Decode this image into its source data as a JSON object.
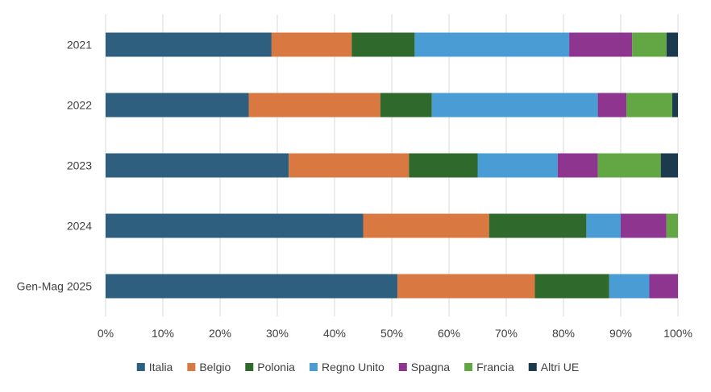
{
  "chart_data": {
    "type": "bar",
    "orientation": "horizontal",
    "stacked": "percent",
    "title": "",
    "xlabel": "",
    "ylabel": "",
    "xlim": [
      0,
      100
    ],
    "x_ticks": [
      "0%",
      "10%",
      "20%",
      "30%",
      "40%",
      "50%",
      "60%",
      "70%",
      "80%",
      "90%",
      "100%"
    ],
    "grid": true,
    "legend_position": "bottom",
    "categories": [
      "2021",
      "2022",
      "2023",
      "2024",
      "Gen-Mag 2025"
    ],
    "series": [
      {
        "name": "Italia",
        "color": "#2E5F7F",
        "values": [
          29,
          25,
          32,
          45,
          51
        ]
      },
      {
        "name": "Belgio",
        "color": "#D97941",
        "values": [
          14,
          23,
          21,
          22,
          24
        ]
      },
      {
        "name": "Polonia",
        "color": "#2F6A2C",
        "values": [
          11,
          9,
          12,
          17,
          13
        ]
      },
      {
        "name": "Regno Unito",
        "color": "#4A9DD4",
        "values": [
          27,
          29,
          14,
          6,
          7
        ]
      },
      {
        "name": "Spagna",
        "color": "#8E358F",
        "values": [
          11,
          5,
          7,
          8,
          5
        ]
      },
      {
        "name": "Francia",
        "color": "#62A744",
        "values": [
          6,
          8,
          11,
          2,
          0
        ]
      },
      {
        "name": "Altri UE",
        "color": "#1B3A4E",
        "values": [
          2,
          1,
          3,
          0,
          0
        ]
      }
    ]
  }
}
